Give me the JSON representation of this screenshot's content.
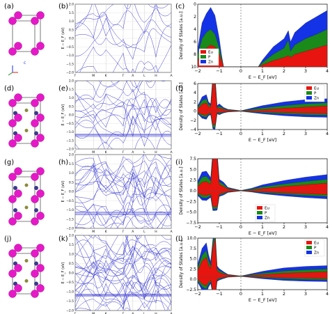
{
  "panel_labels": [
    "(a)",
    "(b)",
    "(c)",
    "(d)",
    "(e)",
    "(f)",
    "(g)",
    "(h)",
    "(i)",
    "(j)",
    "(k)",
    "(l)"
  ],
  "colors": {
    "eu": "#e8140f",
    "p": "#1a8a1a",
    "zn": "#1432e6",
    "band": "#3a3ad0",
    "atom_eu": "#e619c8",
    "atom_p": "#3a3a8c",
    "atom_zn": "#8a8a3a"
  },
  "band_ylabel": "E − E_F (eV)",
  "band_kpath": [
    "Γ",
    "M",
    "K",
    "Γ",
    "A",
    "L",
    "H",
    "A"
  ],
  "band_yticks": [
    "2.0",
    "1.5",
    "1.0",
    "0.5",
    "0.0",
    "−0.5",
    "−1.0",
    "−1.5",
    "−2.0"
  ],
  "axis_label": "c",
  "chart_data": [
    {
      "id": "c",
      "type": "area",
      "xlabel": "E − E_F [eV]",
      "ylabel": "Density of States [a.u.]",
      "xlim": [
        -2,
        4
      ],
      "ylim": [
        0,
        10
      ],
      "xticks": [
        "−2",
        "−1",
        "0",
        "1",
        "2",
        "3",
        "4"
      ],
      "yticks": [
        "0",
        "2",
        "4",
        "6",
        "8",
        "10"
      ],
      "legend": [
        "Eu",
        "P",
        "Zn"
      ],
      "legend_placement": "bottom-left",
      "x": [
        -2,
        -1.8,
        -1.6,
        -1.4,
        -1.2,
        -1.0,
        -0.9,
        -0.8,
        -0.6,
        0.8,
        1.0,
        1.5,
        2.0,
        2.2,
        2.3,
        2.5,
        3.0,
        3.5,
        4.0
      ],
      "series": [
        {
          "name": "Eu",
          "values": [
            1.0,
            2.5,
            3.0,
            3.5,
            3.2,
            2.0,
            1.0,
            0.0,
            0.0,
            0.0,
            0.3,
            1.0,
            1.5,
            1.8,
            1.5,
            2.0,
            2.5,
            3.0,
            3.5
          ]
        },
        {
          "name": "P",
          "values": [
            1.0,
            2.0,
            2.5,
            2.5,
            2.0,
            1.0,
            0.5,
            0.0,
            0.0,
            0.0,
            0.4,
            1.0,
            1.5,
            2.5,
            1.0,
            1.5,
            2.0,
            2.2,
            2.5
          ]
        },
        {
          "name": "Zn",
          "values": [
            0.8,
            2.5,
            3.0,
            3.5,
            3.0,
            1.5,
            0.5,
            0.0,
            0.0,
            0.0,
            0.4,
            1.2,
            1.5,
            1.5,
            1.5,
            2.0,
            2.5,
            2.8,
            3.0
          ]
        }
      ]
    },
    {
      "id": "f",
      "type": "area",
      "symmetric": true,
      "xlabel": "E − E_F [eV]",
      "ylabel": "Density of States [a.u.]",
      "xlim": [
        -2,
        4
      ],
      "ylim": [
        -4,
        6
      ],
      "xticks": [
        "−2",
        "−1",
        "0",
        "1",
        "2",
        "3",
        "4"
      ],
      "yticks": [
        "6",
        "4",
        "2",
        "0",
        "−2",
        "−4"
      ],
      "legend": [
        "Eu",
        "P",
        "Zn"
      ],
      "legend_placement": "top-right",
      "x": [
        -2,
        -1.8,
        -1.6,
        -1.5,
        -1.4,
        -1.3,
        -1.2,
        -1.1,
        -1.0,
        -0.8,
        -0.6,
        0.0,
        1.0,
        2.0,
        3.0,
        4.0
      ],
      "series": [
        {
          "name": "Eu",
          "values": [
            0.5,
            1.5,
            1.8,
            1.0,
            0.8,
            6.0,
            6.0,
            0.5,
            0.6,
            0.4,
            0.2,
            0.05,
            0.3,
            0.6,
            0.9,
            1.1
          ]
        },
        {
          "name": "P",
          "values": [
            0.3,
            0.8,
            0.9,
            0.5,
            0.4,
            1.0,
            1.2,
            0.3,
            0.5,
            0.2,
            0.1,
            0.02,
            0.4,
            0.6,
            0.7,
            0.7
          ]
        },
        {
          "name": "Zn",
          "values": [
            0.3,
            0.8,
            0.9,
            0.5,
            0.4,
            0.7,
            0.8,
            0.4,
            0.5,
            0.2,
            0.1,
            0.02,
            0.5,
            0.8,
            0.9,
            0.9
          ]
        }
      ]
    },
    {
      "id": "i",
      "type": "area",
      "symmetric": true,
      "xlabel": "E − E_F [eV]",
      "ylabel": "Density of States [a.u.]",
      "xlim": [
        -2,
        4
      ],
      "ylim": [
        -7.5,
        7.5
      ],
      "xticks": [
        "−2",
        "−1",
        "0",
        "1",
        "2",
        "3",
        "4"
      ],
      "yticks": [
        "7.5",
        "5.0",
        "2.5",
        "0.0",
        "−2.5",
        "−5.0",
        "−7.5"
      ],
      "legend": [
        "Eu",
        "P",
        "Zn"
      ],
      "legend_placement": "bottom-center",
      "x": [
        -2,
        -1.8,
        -1.6,
        -1.4,
        -1.3,
        -1.2,
        -1.1,
        -1.0,
        -0.8,
        -0.6,
        0.0,
        0.5,
        1.0,
        2.0,
        3.0,
        4.0
      ],
      "series": [
        {
          "name": "Eu",
          "values": [
            1.0,
            2.0,
            2.2,
            1.5,
            7.5,
            7.5,
            7.5,
            1.5,
            1.0,
            0.4,
            0.05,
            0.2,
            0.5,
            1.0,
            1.4,
            1.8
          ]
        },
        {
          "name": "P",
          "values": [
            0.6,
            1.2,
            1.2,
            0.8,
            1.0,
            1.0,
            0.8,
            0.6,
            0.5,
            0.2,
            0.02,
            0.2,
            0.4,
            0.6,
            0.8,
            0.9
          ]
        },
        {
          "name": "Zn",
          "values": [
            0.6,
            1.2,
            1.2,
            0.8,
            0.8,
            0.8,
            0.8,
            0.6,
            0.5,
            0.2,
            0.02,
            0.2,
            0.5,
            0.8,
            1.0,
            1.1
          ]
        }
      ]
    },
    {
      "id": "l",
      "type": "area",
      "symmetric": true,
      "xlabel": "E − E_F [eV]",
      "ylabel": "Density of States [a.u.]",
      "xlim": [
        -2,
        4
      ],
      "ylim": [
        -3.5,
        10
      ],
      "xticks": [
        "−2",
        "−1",
        "0",
        "1",
        "2",
        "3",
        "4"
      ],
      "yticks": [
        "10.0",
        "7.5",
        "5.0",
        "2.5",
        "0.0",
        "−2.5"
      ],
      "legend": [
        "Eu",
        "P",
        "Zn"
      ],
      "legend_placement": "top-right",
      "x": [
        -2,
        -1.8,
        -1.6,
        -1.5,
        -1.4,
        -1.3,
        -1.2,
        -1.1,
        -1.0,
        -0.8,
        -0.6,
        0.0,
        1.0,
        2.0,
        3.0,
        4.0
      ],
      "series": [
        {
          "name": "Eu",
          "values": [
            1.5,
            4.0,
            5.0,
            3.0,
            2.0,
            7.5,
            10.0,
            1.5,
            1.0,
            0.6,
            0.3,
            0.05,
            0.4,
            0.8,
            1.0,
            1.2
          ]
        },
        {
          "name": "P",
          "values": [
            0.8,
            1.5,
            1.8,
            1.2,
            0.8,
            1.2,
            1.5,
            0.6,
            0.5,
            0.3,
            0.1,
            0.02,
            0.4,
            0.6,
            0.7,
            0.7
          ]
        },
        {
          "name": "Zn",
          "values": [
            0.8,
            1.8,
            2.0,
            1.5,
            1.0,
            1.0,
            1.2,
            0.6,
            0.5,
            0.3,
            0.1,
            0.02,
            0.5,
            0.8,
            0.9,
            0.9
          ]
        }
      ]
    }
  ]
}
